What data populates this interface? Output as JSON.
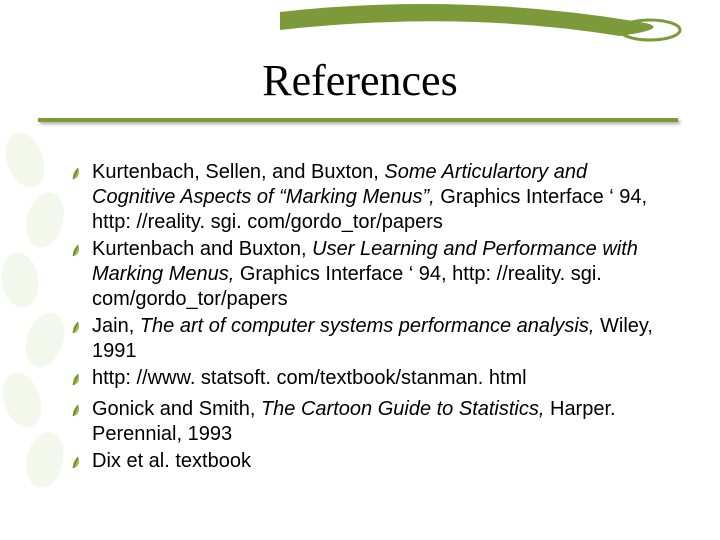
{
  "title": "References",
  "colors": {
    "accent_green": "#7d9a3a",
    "leaf_dark": "#5a7a28",
    "leaf_light": "#9ab84d",
    "text": "#000000",
    "background": "#ffffff"
  },
  "typography": {
    "title_family": "Times New Roman",
    "title_size_pt": 33,
    "body_family": "Arial",
    "body_size_pt": 15
  },
  "bullet_icon": "leaf",
  "references": [
    {
      "segments": [
        {
          "text": "Kurtenbach, Sellen, and Buxton, ",
          "italic": false
        },
        {
          "text": "Some Articulartory and Cognitive Aspects of “Marking Menus”,",
          "italic": true
        },
        {
          "text": " Graphics Interface ‘ 94, http: //reality. sgi. com/gordo_tor/papers",
          "italic": false
        }
      ]
    },
    {
      "segments": [
        {
          "text": "Kurtenbach and Buxton, ",
          "italic": false
        },
        {
          "text": "User Learning and Performance with Marking Menus,",
          "italic": true
        },
        {
          "text": " Graphics Interface ‘ 94, http: //reality. sgi. com/gordo_tor/papers",
          "italic": false
        }
      ]
    },
    {
      "segments": [
        {
          "text": "Jain, ",
          "italic": false
        },
        {
          "text": "The art of computer systems performance analysis,",
          "italic": true
        },
        {
          "text": " Wiley, 1991",
          "italic": false
        }
      ]
    },
    {
      "segments": [
        {
          "text": "http: //www. statsoft. com/textbook/stanman. html",
          "italic": false
        }
      ]
    },
    {
      "segments": [
        {
          "text": "Gonick and Smith, ",
          "italic": false
        },
        {
          "text": "The Cartoon Guide to Statistics,",
          "italic": true
        },
        {
          "text": " Harper. Perennial, 1993",
          "italic": false
        }
      ]
    },
    {
      "segments": [
        {
          "text": "Dix et al. textbook",
          "italic": false
        }
      ]
    }
  ]
}
